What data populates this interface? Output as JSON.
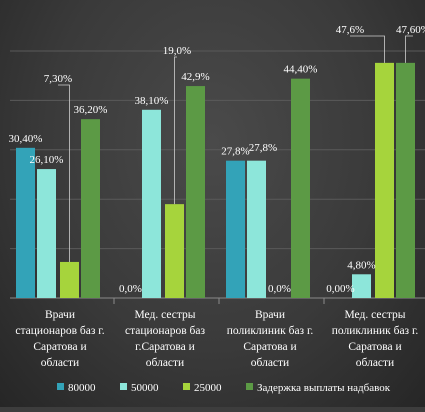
{
  "chart_data": {
    "type": "bar",
    "categories": [
      [
        "Врачи",
        "стационаров баз г.",
        "Саратова и",
        "области"
      ],
      [
        "Мед. сестры",
        "стационаров баз",
        "г.Саратова и",
        "области"
      ],
      [
        "Врачи",
        "поликлиник баз г.",
        "Саратова и",
        "области"
      ],
      [
        "Мед. сестры",
        "поликлиник баз г.",
        "Саратова и",
        "области"
      ]
    ],
    "series": [
      {
        "name": "80000",
        "values": [
          30.4,
          0.0,
          27.8,
          0.0
        ],
        "labels": [
          "30,40%",
          "0,0%",
          "27,8%",
          "0,00%"
        ],
        "color": "#33a3b8"
      },
      {
        "name": "50000",
        "values": [
          26.1,
          38.1,
          27.8,
          4.8
        ],
        "labels": [
          "26,10%",
          "38,10%",
          "27,8%",
          "4,80%"
        ],
        "color": "#8de6da"
      },
      {
        "name": "25000",
        "values": [
          7.3,
          19.0,
          0.0,
          47.6
        ],
        "labels": [
          "7,30%",
          "19,0%",
          "0,0%",
          "47,6%"
        ],
        "color": "#a6d43c"
      },
      {
        "name": "Задержка выплаты надбавок",
        "values": [
          36.2,
          42.9,
          44.4,
          47.6
        ],
        "labels": [
          "36,20%",
          "42,9%",
          "44,40%",
          "47,60%"
        ],
        "color": "#5c9a45"
      }
    ],
    "ylim": [
      0,
      50
    ],
    "grid": true,
    "legend_position": "bottom"
  }
}
